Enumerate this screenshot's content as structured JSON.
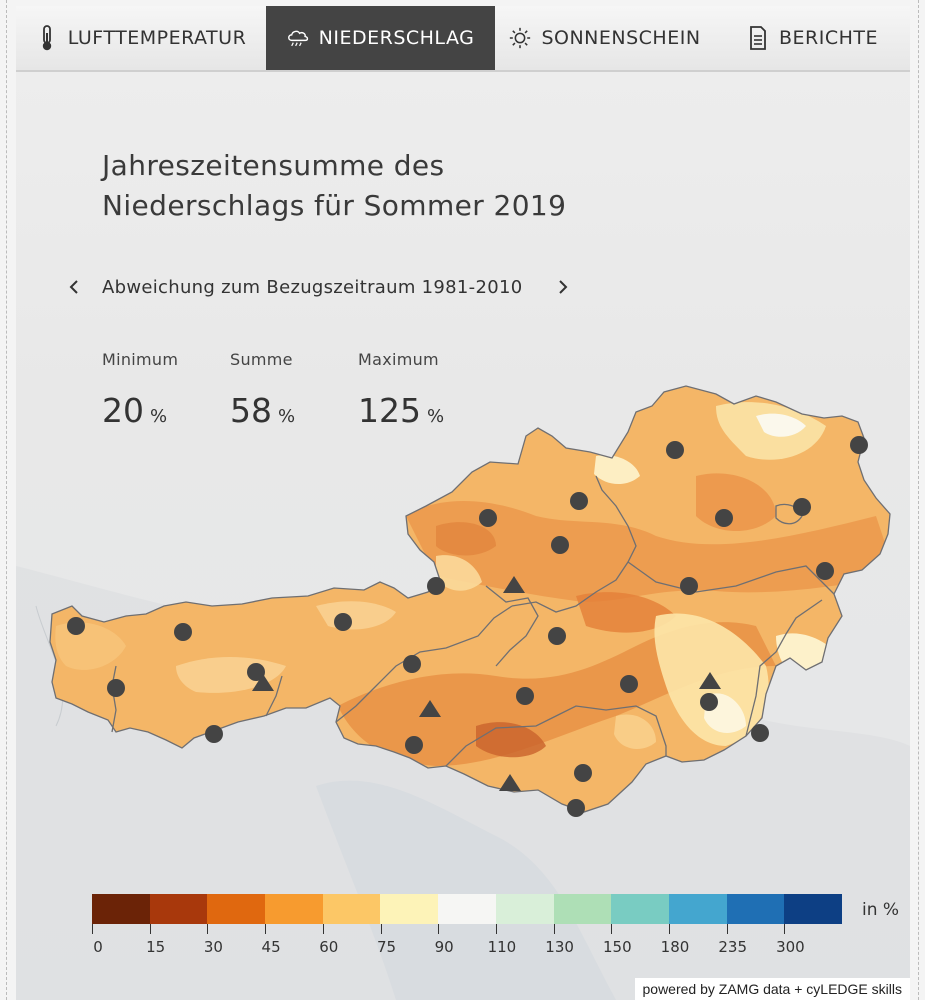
{
  "tabs": [
    {
      "label": "LUFTTEMPERATUR",
      "icon": "thermometer-icon",
      "active": false
    },
    {
      "label": "NIEDERSCHLAG",
      "icon": "rain-cloud-icon",
      "active": true
    },
    {
      "label": "SONNENSCHEIN",
      "icon": "sun-icon",
      "active": false
    },
    {
      "label": "BERICHTE",
      "icon": "document-icon",
      "active": false
    }
  ],
  "title_line1": "Jahreszeitensumme des",
  "title_line2": "Niederschlags für Sommer 2019",
  "subtitle": "Abweichung zum Bezugszeitraum 1981-2010",
  "stats": {
    "minimum": {
      "label": "Minimum",
      "value": "20",
      "unit": "%"
    },
    "summe": {
      "label": "Summe",
      "value": "58",
      "unit": "%"
    },
    "maximum": {
      "label": "Maximum",
      "value": "125",
      "unit": "%"
    }
  },
  "legend": {
    "unit": "in %",
    "colors": [
      "#6b2307",
      "#a8380c",
      "#e0680f",
      "#f79b2f",
      "#fcc766",
      "#fdf3b8",
      "#f6f6f4",
      "#d9efd9",
      "#aedfb6",
      "#79ccc2",
      "#44a6cf",
      "#1f6fb4",
      "#0d3f84"
    ],
    "labels": [
      "0",
      "15",
      "30",
      "45",
      "60",
      "75",
      "90",
      "110",
      "130",
      "150",
      "180",
      "235",
      "300"
    ]
  },
  "colors": {
    "active_tab": "#444444",
    "map_base": "#f2b56b",
    "station": "#444444"
  },
  "credit": "powered by ZAMG data + cyLEDGE skills"
}
